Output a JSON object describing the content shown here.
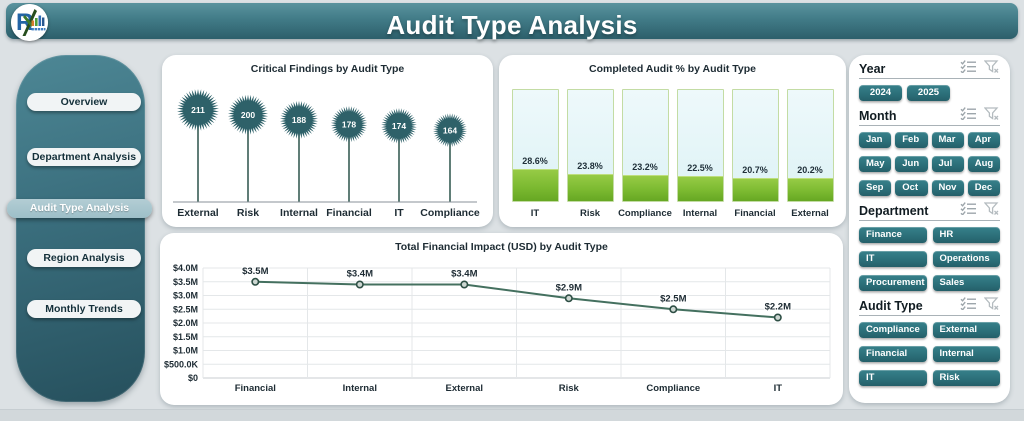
{
  "header": {
    "title": "Audit Type Analysis",
    "logo": "analytics-monogram"
  },
  "sidebar": {
    "items": [
      {
        "label": "Overview",
        "selected": false
      },
      {
        "label": "Department Analysis",
        "selected": false
      },
      {
        "label": "Audit Type Analysis",
        "selected": true
      },
      {
        "label": "Region Analysis",
        "selected": false
      },
      {
        "label": "Monthly Trends",
        "selected": false
      }
    ]
  },
  "colors": {
    "header_teal": "#2d5f6b",
    "sidebar_teal": "#3a6e7d",
    "slicer_button_teal": "#2c707a",
    "selected_pill": "#9dbfc8",
    "flower": "#2e6169",
    "bar_fill_green": "#7cba31",
    "bar_track_cyan": "#ddf2f5",
    "line_green": "#44705f"
  },
  "chart_data": [
    {
      "type": "lollipop-star",
      "title": "Critical Findings by Audit Type",
      "categories": [
        "External",
        "Risk",
        "Internal",
        "Financial",
        "IT",
        "Compliance"
      ],
      "values": [
        211,
        200,
        188,
        178,
        174,
        164
      ],
      "xlabel": "",
      "ylabel": "",
      "grid": false,
      "legend": false
    },
    {
      "type": "bar",
      "title": "Completed Audit % by Audit Type",
      "categories": [
        "IT",
        "Risk",
        "Compliance",
        "Internal",
        "Financial",
        "External"
      ],
      "values": [
        28.6,
        23.8,
        23.2,
        22.5,
        20.7,
        20.2
      ],
      "value_labels": [
        "28.6%",
        "23.8%",
        "23.2%",
        "22.5%",
        "20.7%",
        "20.2%"
      ],
      "xlabel": "",
      "ylabel": "",
      "ylim": [
        0,
        100
      ],
      "grid": false,
      "legend": false
    },
    {
      "type": "line",
      "title": "Total Financial Impact (USD) by Audit Type",
      "categories": [
        "Financial",
        "Internal",
        "External",
        "Risk",
        "Compliance",
        "IT"
      ],
      "values": [
        3500000,
        3400000,
        3400000,
        2900000,
        2500000,
        2200000
      ],
      "value_labels": [
        "$3.5M",
        "$3.4M",
        "$3.4M",
        "$2.9M",
        "$2.5M",
        "$2.2M"
      ],
      "ytick_labels": [
        "$4.0M",
        "$3.5M",
        "$3.0M",
        "$2.5M",
        "$2.0M",
        "$1.5M",
        "$1.0M",
        "$500.0K",
        "$0"
      ],
      "xlabel": "",
      "ylabel": "",
      "ylim": [
        0,
        4000000
      ],
      "grid": true,
      "legend": false
    }
  ],
  "filters": {
    "year": {
      "label": "Year",
      "options": [
        "2024",
        "2025"
      ],
      "icons": [
        "multi-select-icon",
        "clear-filter-icon"
      ]
    },
    "month": {
      "label": "Month",
      "options": [
        "Jan",
        "Feb",
        "Mar",
        "Apr",
        "May",
        "Jun",
        "Jul",
        "Aug",
        "Sep",
        "Oct",
        "Nov",
        "Dec"
      ],
      "icons": [
        "multi-select-icon",
        "clear-filter-icon"
      ]
    },
    "department": {
      "label": "Department",
      "options": [
        "Finance",
        "HR",
        "IT",
        "Operations",
        "Procurement",
        "Sales"
      ],
      "icons": [
        "multi-select-icon",
        "clear-filter-icon"
      ]
    },
    "audit_type": {
      "label": "Audit Type",
      "options": [
        "Compliance",
        "External",
        "Financial",
        "Internal",
        "IT",
        "Risk"
      ],
      "icons": [
        "multi-select-icon",
        "clear-filter-icon"
      ]
    }
  }
}
